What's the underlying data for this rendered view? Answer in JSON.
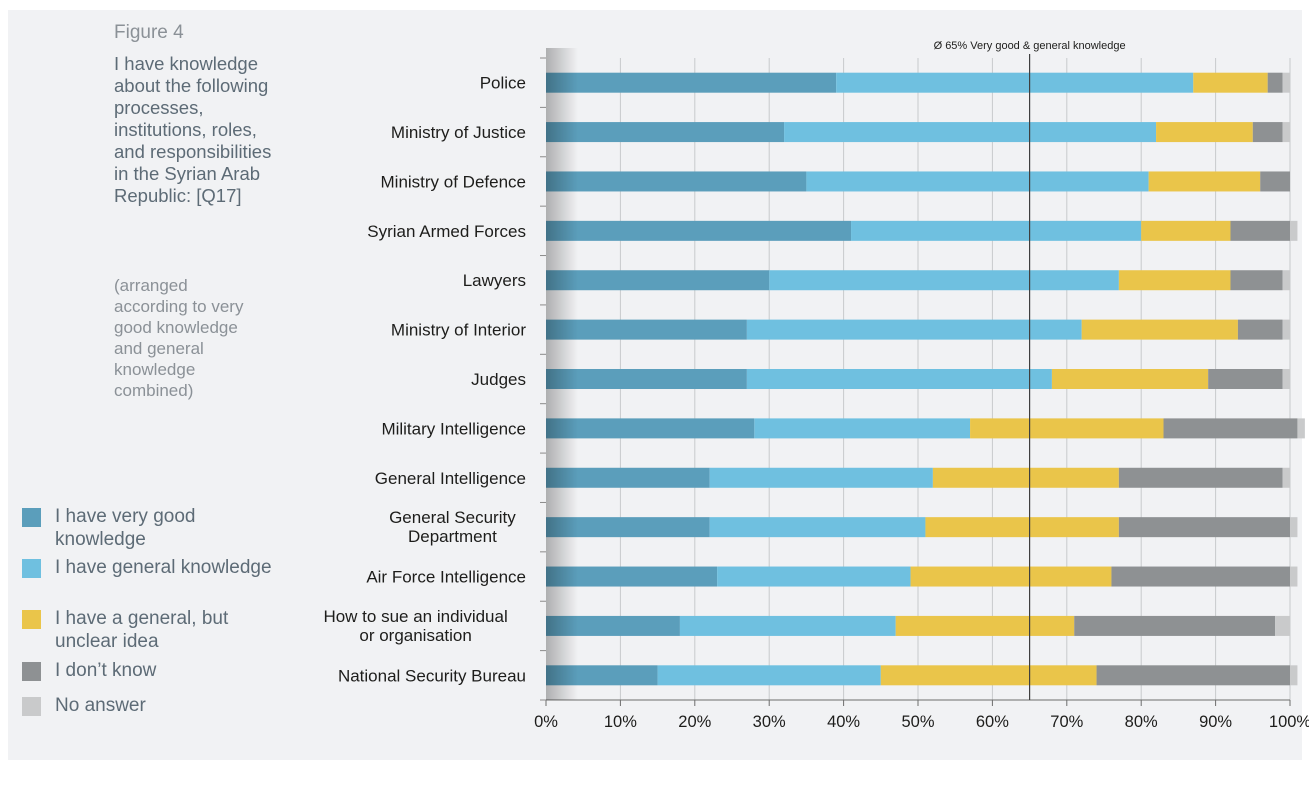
{
  "figure": {
    "label": "Figure 4",
    "title": "I have knowledge about the following processes, institutions, roles, and responsibilities in the Syrian Arab Republic: [Q17]",
    "note": "(arranged according to very good knowledge and general knowledge combined)"
  },
  "chart_data": {
    "type": "bar",
    "orientation": "horizontal",
    "stacked": true,
    "categories": [
      "Police",
      "Ministry of Justice",
      "Ministry of Defence",
      "Syrian Armed Forces",
      "Lawyers",
      "Ministry of Interior",
      "Judges",
      "Military Intelligence",
      "General Intelligence",
      "General Security Department",
      "Air Force Intelligence",
      "How to sue an individual or organisation",
      "National Security Bureau"
    ],
    "series": [
      {
        "name": "I have very good knowledge",
        "color": "#5b9ebb",
        "values": [
          39,
          32,
          35,
          41,
          30,
          27,
          27,
          28,
          22,
          22,
          23,
          18,
          15
        ]
      },
      {
        "name": "I have general knowledge",
        "color": "#6fc0e0",
        "values": [
          48,
          50,
          46,
          39,
          47,
          45,
          41,
          29,
          30,
          29,
          26,
          29,
          30
        ]
      },
      {
        "name": "I have a general, but unclear idea",
        "color": "#eac54a",
        "values": [
          10,
          13,
          15,
          12,
          15,
          21,
          21,
          26,
          25,
          26,
          27,
          24,
          29
        ]
      },
      {
        "name": "I don’t know",
        "color": "#8e9193",
        "values": [
          2,
          4,
          4,
          8,
          7,
          6,
          10,
          18,
          22,
          23,
          24,
          27,
          26
        ]
      },
      {
        "name": "No answer",
        "color": "#c9cacb",
        "values": [
          1,
          1,
          0,
          1,
          1,
          1,
          1,
          1,
          1,
          1,
          1,
          2,
          1
        ]
      }
    ],
    "xlim": [
      0,
      100
    ],
    "xticks": [
      "0%",
      "10%",
      "20%",
      "30%",
      "40%",
      "50%",
      "60%",
      "70%",
      "80%",
      "90%",
      "100%"
    ],
    "reference_line": {
      "value": 65,
      "label": "Ø 65% Very good & general knowledge"
    },
    "grid": true,
    "legend_position": "left"
  }
}
